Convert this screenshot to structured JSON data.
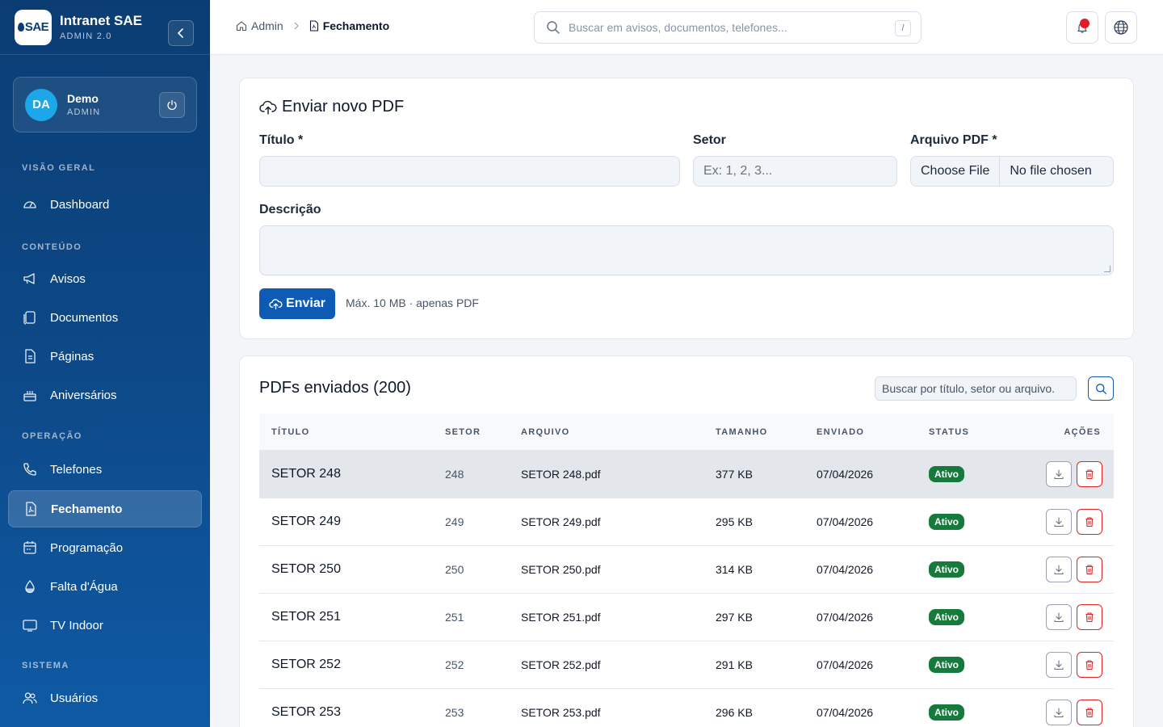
{
  "brand": {
    "logo_text": "SAE",
    "title": "Intranet SAE",
    "subtitle": "ADMIN 2.0"
  },
  "user": {
    "initials": "DA",
    "name": "Demo",
    "role": "ADMIN"
  },
  "nav": {
    "sections": [
      {
        "label": "VISÃO GERAL",
        "items": [
          {
            "label": "Dashboard",
            "icon": "gauge-icon"
          }
        ]
      },
      {
        "label": "CONTEÚDO",
        "items": [
          {
            "label": "Avisos",
            "icon": "megaphone-icon"
          },
          {
            "label": "Documentos",
            "icon": "documents-icon"
          },
          {
            "label": "Páginas",
            "icon": "page-icon"
          },
          {
            "label": "Aniversários",
            "icon": "cake-icon"
          }
        ]
      },
      {
        "label": "OPERAÇÃO",
        "items": [
          {
            "label": "Telefones",
            "icon": "phone-icon"
          },
          {
            "label": "Fechamento",
            "icon": "pdf-file-icon",
            "active": true
          },
          {
            "label": "Programação",
            "icon": "calendar-icon"
          },
          {
            "label": "Falta d'Água",
            "icon": "water-drop-icon"
          },
          {
            "label": "TV Indoor",
            "icon": "monitor-icon"
          }
        ]
      },
      {
        "label": "SISTEMA",
        "items": [
          {
            "label": "Usuários",
            "icon": "users-icon"
          }
        ]
      }
    ]
  },
  "breadcrumb": {
    "root": "Admin",
    "current": "Fechamento"
  },
  "search": {
    "placeholder": "Buscar em avisos, documentos, telefones...",
    "shortcut": "/"
  },
  "upload": {
    "title": "Enviar novo PDF",
    "titulo_label": "Título *",
    "titulo_value": "",
    "setor_label": "Setor",
    "setor_placeholder": "Ex: 1, 2, 3...",
    "arquivo_label": "Arquivo PDF *",
    "file_button": "Choose File",
    "file_name": "No file chosen",
    "descricao_label": "Descrição",
    "send_label": "Enviar",
    "hint": "Máx. 10 MB · apenas PDF"
  },
  "list": {
    "title": "PDFs enviados (200)",
    "search_placeholder": "Buscar por título, setor ou arquivo.",
    "columns": {
      "titulo": "TÍTULO",
      "setor": "SETOR",
      "arquivo": "ARQUIVO",
      "tamanho": "TAMANHO",
      "enviado": "ENVIADO",
      "status": "STATUS",
      "acoes": "AÇÕES"
    },
    "rows": [
      {
        "titulo": "SETOR 248",
        "setor": "248",
        "arquivo": "SETOR 248.pdf",
        "tamanho": "377 KB",
        "enviado": "07/04/2026",
        "status": "Ativo"
      },
      {
        "titulo": "SETOR 249",
        "setor": "249",
        "arquivo": "SETOR 249.pdf",
        "tamanho": "295 KB",
        "enviado": "07/04/2026",
        "status": "Ativo"
      },
      {
        "titulo": "SETOR 250",
        "setor": "250",
        "arquivo": "SETOR 250.pdf",
        "tamanho": "314 KB",
        "enviado": "07/04/2026",
        "status": "Ativo"
      },
      {
        "titulo": "SETOR 251",
        "setor": "251",
        "arquivo": "SETOR 251.pdf",
        "tamanho": "297 KB",
        "enviado": "07/04/2026",
        "status": "Ativo"
      },
      {
        "titulo": "SETOR 252",
        "setor": "252",
        "arquivo": "SETOR 252.pdf",
        "tamanho": "291 KB",
        "enviado": "07/04/2026",
        "status": "Ativo"
      },
      {
        "titulo": "SETOR 253",
        "setor": "253",
        "arquivo": "SETOR 253.pdf",
        "tamanho": "296 KB",
        "enviado": "07/04/2026",
        "status": "Ativo"
      }
    ]
  },
  "colors": {
    "sidebar": "#0b3d73",
    "primary": "#0d5bb5",
    "success": "#157a3c",
    "danger": "#dc2626",
    "notification": "#e11d2b"
  }
}
